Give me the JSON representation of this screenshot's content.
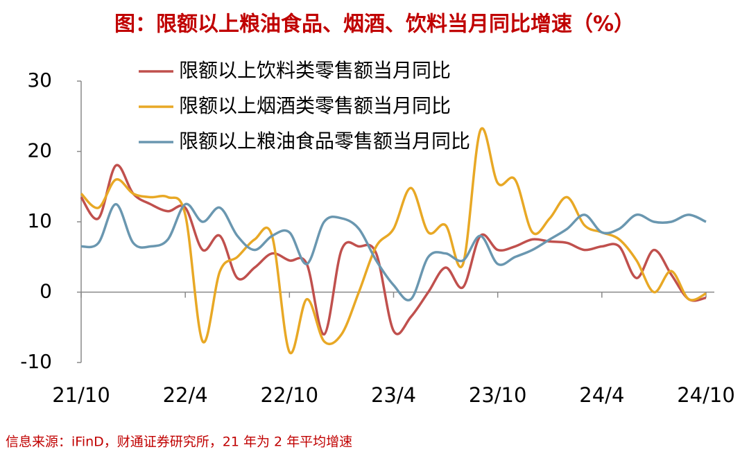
{
  "chart_data": {
    "type": "line",
    "title": "图：限额以上粮油食品、烟酒、饮料当月同比增速（%）",
    "source": "信息来源：iFinD，财通证券研究所，21 年为 2 年平均增速",
    "categories": [
      "21/10",
      null,
      null,
      null,
      null,
      null,
      "22/4",
      null,
      null,
      null,
      null,
      null,
      "22/10",
      null,
      null,
      null,
      null,
      null,
      "23/4",
      null,
      null,
      null,
      null,
      null,
      "23/10",
      null,
      null,
      null,
      null,
      null,
      "24/4",
      null,
      null,
      null,
      null,
      null,
      "24/10"
    ],
    "series": [
      {
        "name": "限额以上饮料类零售额当月同比",
        "color": "#c0504d",
        "values": [
          13.5,
          10.5,
          18,
          14,
          12.5,
          11.5,
          12,
          6,
          8,
          2,
          3.5,
          5.5,
          4.5,
          4,
          -6,
          6,
          6.5,
          5.5,
          -5.5,
          -3.5,
          0,
          3.5,
          0.7,
          8,
          6,
          6.5,
          7.5,
          7.2,
          7,
          6,
          6.5,
          6.5,
          2,
          6,
          2.5,
          -1,
          -0.8
        ]
      },
      {
        "name": "限额以上烟酒类零售额当月同比",
        "color": "#e8a825",
        "values": [
          14,
          12,
          16,
          14,
          13.5,
          13.5,
          11,
          -7,
          3,
          5,
          7.5,
          8,
          -8.5,
          -1,
          -7,
          -6,
          0,
          6.5,
          9,
          14.8,
          8.5,
          9.5,
          4,
          23,
          15.5,
          16,
          8.5,
          10.5,
          13.5,
          9.5,
          8.5,
          7.5,
          4.5,
          0,
          3,
          -1,
          -0.2
        ]
      },
      {
        "name": "限额以上粮油食品零售额当月同比",
        "color": "#6a97b0",
        "values": [
          6.5,
          7,
          12.5,
          7,
          6.5,
          7.5,
          12.5,
          10,
          12,
          8,
          6,
          8,
          8.5,
          4,
          10,
          10.5,
          9,
          4.5,
          1,
          -1,
          5,
          5.5,
          4.5,
          8,
          4,
          5,
          6,
          7.5,
          9,
          11,
          8.5,
          9,
          11,
          10,
          10,
          11,
          10
        ]
      }
    ],
    "ylim": [
      -10,
      30
    ],
    "yticks": [
      -10,
      0,
      10,
      20,
      30
    ]
  }
}
